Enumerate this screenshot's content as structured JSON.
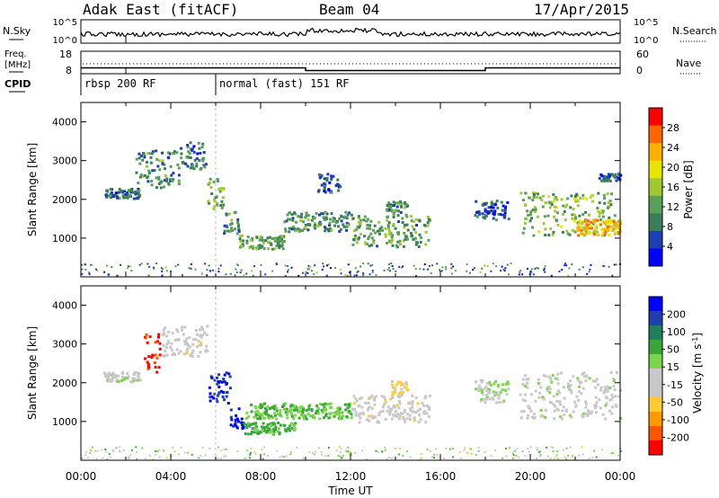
{
  "header": {
    "station": "Adak East (fitACF)",
    "beam": "Beam 04",
    "date": "17/Apr/2015"
  },
  "strip": {
    "nsky_label": "N.Sky",
    "nsearch_label": "N.Search",
    "nsky_ticks": [
      "10^5",
      "10^0"
    ],
    "nsky_right_ticks": [
      "10^5",
      "10^0"
    ],
    "freq_label_1": "Freq.",
    "freq_label_2": "[MHz]",
    "freq_ticks": [
      "18",
      "8"
    ],
    "nave_ticks": [
      "60",
      "0"
    ],
    "nave_label": "Nave",
    "cpid_label": "CPID",
    "cpid_segments": [
      {
        "start": 0.0,
        "end": 6.0,
        "label": "rbsp 200 RF"
      },
      {
        "start": 6.0,
        "end": 24.0,
        "label": "normal (fast) 151 RF"
      }
    ],
    "freq_steps": [
      {
        "start": 0.0,
        "end": 2.0,
        "mhz": 10.6
      },
      {
        "start": 2.0,
        "end": 10.0,
        "mhz": 10.6
      },
      {
        "start": 10.0,
        "end": 18.0,
        "mhz": 9.4
      },
      {
        "start": 18.0,
        "end": 24.0,
        "mhz": 10.6
      }
    ]
  },
  "chart_data": [
    {
      "type": "heatmap",
      "name": "power",
      "xlabel": "",
      "ylabel": "Slant Range [km]",
      "xlim": [
        0,
        24
      ],
      "ylim": [
        0,
        4500
      ],
      "yticks": [
        "4000",
        "3000",
        "2000",
        "1000"
      ],
      "colorbar_label": "Power [dB]",
      "colorbar_ticks": [
        "28",
        "24",
        "20",
        "16",
        "12",
        "8",
        "4"
      ],
      "colorbar_range": [
        0,
        32
      ],
      "colors": [
        "#0000ff",
        "#1f3fb0",
        "#3a7f5a",
        "#5aa05a",
        "#a0c830",
        "#e6e600",
        "#ffb000",
        "#ff6600",
        "#ff0000"
      ],
      "echo_regions": [
        {
          "t0": 1.0,
          "t1": 2.6,
          "r0": 2050,
          "r1": 2300,
          "level": 8
        },
        {
          "t0": 2.4,
          "t1": 4.4,
          "r0": 2300,
          "r1": 3300,
          "level": 10
        },
        {
          "t0": 4.4,
          "t1": 5.6,
          "r0": 2800,
          "r1": 3500,
          "level": 8
        },
        {
          "t0": 5.6,
          "t1": 6.3,
          "r0": 1600,
          "r1": 2700,
          "level": 14
        },
        {
          "t0": 6.3,
          "t1": 7.0,
          "r0": 1000,
          "r1": 1700,
          "level": 10
        },
        {
          "t0": 7.0,
          "t1": 9.0,
          "r0": 750,
          "r1": 1100,
          "level": 12
        },
        {
          "t0": 9.0,
          "t1": 12.0,
          "r0": 1200,
          "r1": 1700,
          "level": 10
        },
        {
          "t0": 12.0,
          "t1": 15.5,
          "r0": 800,
          "r1": 1600,
          "level": 12
        },
        {
          "t0": 13.5,
          "t1": 14.5,
          "r0": 1600,
          "r1": 2000,
          "level": 10
        },
        {
          "t0": 10.5,
          "t1": 11.5,
          "r0": 2200,
          "r1": 2700,
          "level": 6
        },
        {
          "t0": 17.5,
          "t1": 19.0,
          "r0": 1500,
          "r1": 2000,
          "level": 6
        },
        {
          "t0": 19.5,
          "t1": 24.0,
          "r0": 1100,
          "r1": 2200,
          "level": 14
        },
        {
          "t0": 22.0,
          "t1": 24.0,
          "r0": 1100,
          "r1": 1500,
          "level": 22
        },
        {
          "t0": 23.0,
          "t1": 24.0,
          "r0": 2500,
          "r1": 2700,
          "level": 6
        }
      ]
    },
    {
      "type": "heatmap",
      "name": "velocity",
      "xlabel": "Time UT",
      "ylabel": "Slant Range [km]",
      "xlim": [
        0,
        24
      ],
      "ylim": [
        0,
        4500
      ],
      "xticks": [
        "00:00",
        "04:00",
        "08:00",
        "12:00",
        "16:00",
        "20:00",
        "00:00"
      ],
      "yticks": [
        "4000",
        "3000",
        "2000",
        "1000"
      ],
      "colorbar_label": "Velocity [m s^-1]",
      "colorbar_ticks": [
        "200",
        "100",
        "50",
        "15",
        "-15",
        "-50",
        "-100",
        "-200"
      ],
      "colorbar_range": [
        -250,
        250
      ],
      "colors": [
        "#ff0000",
        "#ff5500",
        "#ff9900",
        "#ffcc33",
        "#c8c8c8",
        "#c8c8c8",
        "#7ad64a",
        "#3aa63a",
        "#1f7f5a",
        "#1f3fb0",
        "#0000ff"
      ],
      "echo_regions": [
        {
          "t0": 1.0,
          "t1": 2.6,
          "r0": 2050,
          "r1": 2300,
          "vel": 0
        },
        {
          "t0": 2.8,
          "t1": 3.5,
          "r0": 2300,
          "r1": 3300,
          "vel": -220
        },
        {
          "t0": 3.5,
          "t1": 5.6,
          "r0": 2700,
          "r1": 3500,
          "vel": -40
        },
        {
          "t0": 5.6,
          "t1": 6.6,
          "r0": 1500,
          "r1": 2300,
          "vel": 200
        },
        {
          "t0": 6.6,
          "t1": 7.2,
          "r0": 800,
          "r1": 1400,
          "vel": 220
        },
        {
          "t0": 7.2,
          "t1": 9.5,
          "r0": 700,
          "r1": 1000,
          "vel": 80
        },
        {
          "t0": 7.2,
          "t1": 12.0,
          "r0": 1100,
          "r1": 1500,
          "vel": 60
        },
        {
          "t0": 12.0,
          "t1": 15.5,
          "r0": 1000,
          "r1": 1700,
          "vel": -40
        },
        {
          "t0": 13.8,
          "t1": 14.5,
          "r0": 1700,
          "r1": 2100,
          "vel": -70
        },
        {
          "t0": 17.5,
          "t1": 19.0,
          "r0": 1500,
          "r1": 2100,
          "vel": 20
        },
        {
          "t0": 19.5,
          "t1": 24.0,
          "r0": 1100,
          "r1": 2300,
          "vel": 0
        }
      ]
    }
  ]
}
